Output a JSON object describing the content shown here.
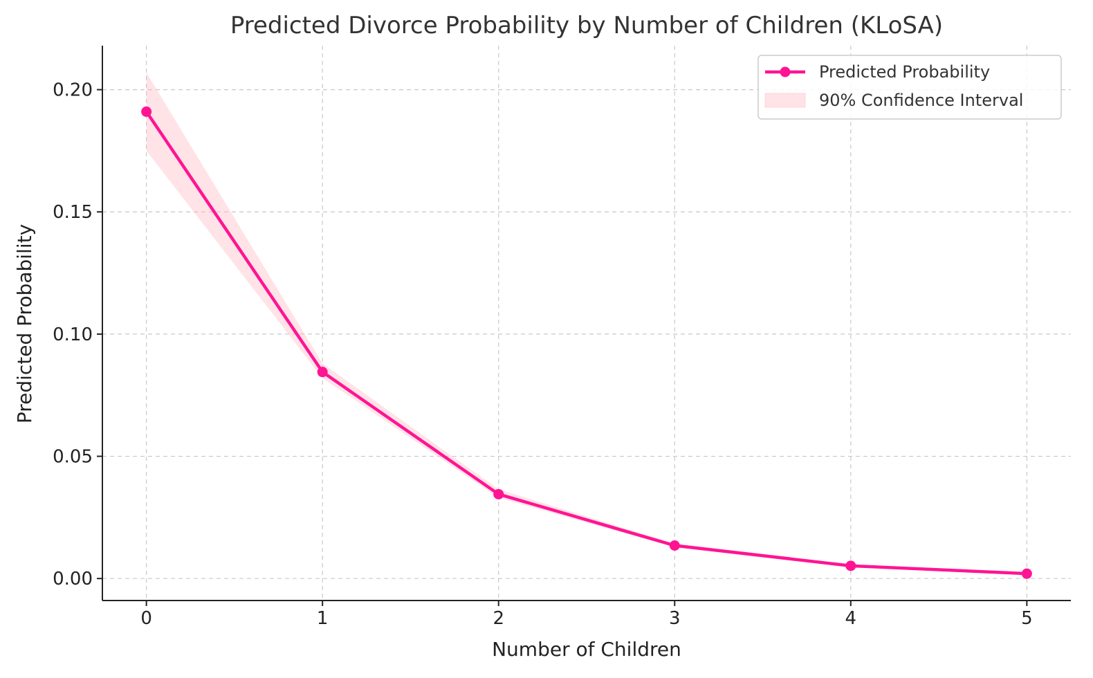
{
  "chart_data": {
    "type": "line",
    "title": "Predicted Divorce Probability by Number of Children (KLoSA)",
    "xlabel": "Number of Children",
    "ylabel": "Predicted Probability",
    "x": [
      0,
      1,
      2,
      3,
      4,
      5
    ],
    "x_tick_labels": [
      "0",
      "1",
      "2",
      "3",
      "4",
      "5"
    ],
    "y_ticks": [
      0.0,
      0.05,
      0.1,
      0.15,
      0.2
    ],
    "y_tick_labels": [
      "0.00",
      "0.05",
      "0.10",
      "0.15",
      "0.20"
    ],
    "xlim": [
      -0.25,
      5.25
    ],
    "ylim": [
      -0.009,
      0.218
    ],
    "grid": true,
    "legend_position": "top-right",
    "series": [
      {
        "name": "Predicted Probability",
        "kind": "line",
        "color": "#ff1493",
        "values": [
          0.191,
          0.0845,
          0.0345,
          0.0135,
          0.0052,
          0.002
        ]
      },
      {
        "name": "90% Confidence Interval",
        "kind": "band",
        "color": "#ffb6c1",
        "lower": [
          0.175,
          0.082,
          0.033,
          0.0128,
          0.0049,
          0.0019
        ],
        "upper": [
          0.207,
          0.088,
          0.0365,
          0.0143,
          0.0055,
          0.0021
        ]
      }
    ]
  }
}
